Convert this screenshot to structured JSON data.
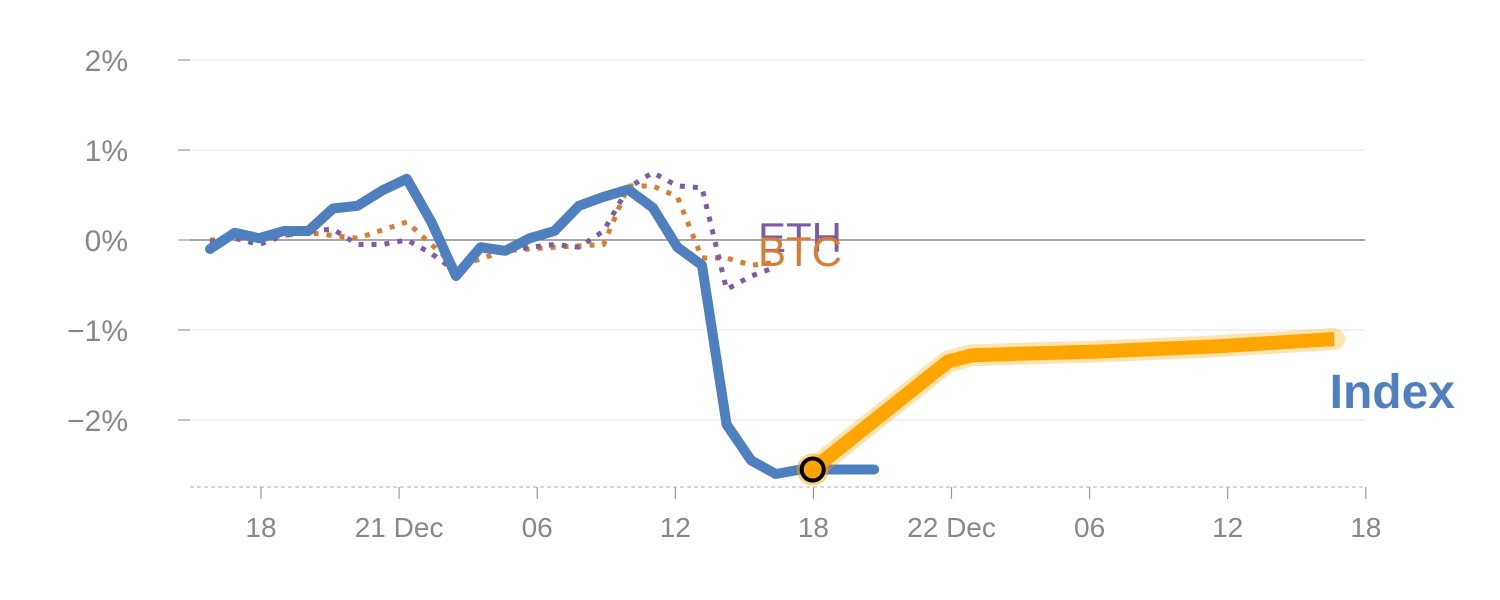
{
  "chart_data": {
    "type": "line",
    "title": "",
    "xlabel": "",
    "ylabel": "",
    "x_tick_labels": [
      "18",
      "21 Dec",
      "06",
      "12",
      "18",
      "22 Dec",
      "06",
      "12",
      "18"
    ],
    "y_tick_labels": [
      "2%",
      "1%",
      "0%",
      "−1%",
      "−2%"
    ],
    "y_ticks": [
      2,
      1,
      0,
      -1,
      -2
    ],
    "ylim": [
      -2.75,
      2.2
    ],
    "grid": true,
    "series": [
      {
        "name": "Index",
        "style": "solid",
        "color": "#4e7fbf",
        "x": [
          0,
          1,
          2,
          3,
          4,
          5,
          6,
          7,
          8,
          9,
          10,
          11,
          12,
          13,
          14,
          15,
          16,
          17,
          18,
          19,
          20,
          21,
          22,
          23,
          24,
          25,
          26,
          27
        ],
        "y": [
          -0.1,
          0.08,
          0.02,
          0.1,
          0.1,
          0.35,
          0.38,
          0.55,
          0.68,
          0.2,
          -0.4,
          -0.08,
          -0.12,
          0.02,
          0.1,
          0.38,
          0.48,
          0.56,
          0.36,
          -0.08,
          -0.28,
          -2.05,
          -2.45,
          -2.6,
          -2.55,
          -2.55,
          -2.55,
          -2.55
        ]
      },
      {
        "name": "BTC",
        "style": "dotted",
        "color": "#d97d32",
        "x": [
          0,
          2,
          4,
          6,
          8,
          10,
          12,
          14,
          16,
          17,
          18,
          19,
          20,
          21,
          22,
          23
        ],
        "y": [
          0,
          0.02,
          0.08,
          0.02,
          0.2,
          -0.3,
          -0.12,
          -0.08,
          -0.05,
          0.6,
          0.6,
          0.48,
          -0.2,
          -0.2,
          -0.28,
          -0.25
        ]
      },
      {
        "name": "ETH",
        "style": "dotted",
        "color": "#7d5ba6",
        "x": [
          0,
          1,
          2,
          3,
          4,
          5,
          6,
          7,
          8,
          9,
          10,
          11,
          12,
          13,
          14,
          15,
          16,
          17,
          18,
          19,
          20,
          21,
          22,
          23
        ],
        "y": [
          -0.02,
          0.02,
          -0.05,
          0.05,
          0.1,
          0.12,
          -0.05,
          -0.05,
          0,
          -0.15,
          -0.35,
          -0.12,
          -0.12,
          -0.08,
          -0.05,
          -0.08,
          0.1,
          0.58,
          0.75,
          0.6,
          0.58,
          -0.55,
          -0.4,
          -0.3
        ]
      },
      {
        "name": "Index projection",
        "style": "highlight",
        "color": "#ffa500",
        "x": [
          24.5,
          30,
          31,
          36,
          41,
          45.7
        ],
        "y": [
          -2.55,
          -1.35,
          -1.28,
          -1.24,
          -1.18,
          -1.1
        ]
      }
    ],
    "highlight_point": {
      "x": 24.5,
      "y": -2.55,
      "fill": "#ffa500",
      "stroke": "#000000"
    },
    "series_labels": [
      "ETH",
      "BTC",
      "Index"
    ],
    "colors": {
      "grid": "#e6e6e6",
      "zero_line": "#8a8a8a",
      "axis": "#cccccc",
      "tick_text": "#888888"
    }
  }
}
